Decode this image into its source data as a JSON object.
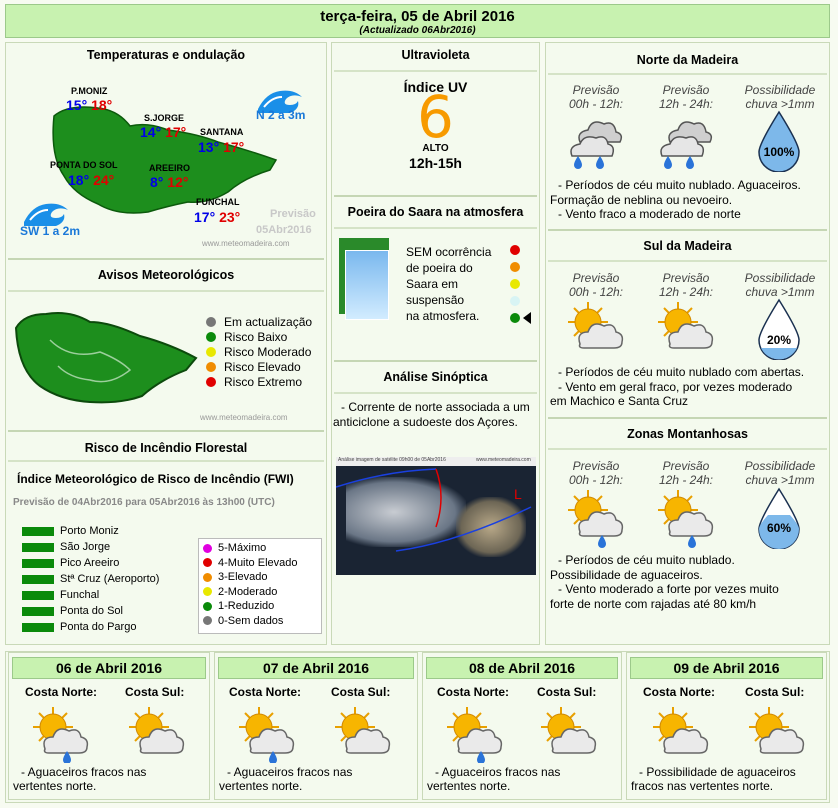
{
  "header": {
    "title": "terça-feira, 05 de Abril 2016",
    "subtitle": "(Actualizado 06Abr2016)"
  },
  "temps": {
    "title": "Temperaturas e ondulação",
    "places": [
      {
        "name": "P.MONIZ",
        "min": "15°",
        "max": "18°"
      },
      {
        "name": "S.JORGE",
        "min": "14°",
        "max": "17°"
      },
      {
        "name": "SANTANA",
        "min": "13°",
        "max": "17°"
      },
      {
        "name": "PONTA DO SOL",
        "min": "18°",
        "max": "24°"
      },
      {
        "name": "AREEIRO",
        "min": "8°",
        "max": "12°"
      },
      {
        "name": "FUNCHAL",
        "min": "17°",
        "max": "23°"
      }
    ],
    "wave_north": "N 2 a 3m",
    "wave_south": "SW 1 a 2m",
    "forecast_label": "Previsão",
    "forecast_date": "05Abr2016",
    "site": "www.meteomadeira.com"
  },
  "uv": {
    "title": "Ultravioleta",
    "label": "Índice UV",
    "value": "6",
    "level": "ALTO",
    "hours": "12h-15h"
  },
  "dust": {
    "title": "Poeira do Saara na atmosfera",
    "text": [
      "SEM ocorrência",
      "de poeira do",
      "Saara em",
      "suspensão",
      "na atmosfera."
    ],
    "dots": [
      "#e00000",
      "#f08c00",
      "#e8e800",
      "#d8f4f4",
      "#0a8a0a"
    ]
  },
  "synoptic": {
    "title": "Análise Sinóptica",
    "text": "- Corrente de norte associada a um anticiclone a sudoeste dos Açores.",
    "map_caption": "Análise imagem de satélite 09h00 de 05Abr2016",
    "map_site": "www.meteomadeira.com"
  },
  "warnings": {
    "title": "Avisos Meteorológicos",
    "items": [
      {
        "label": "Em actualização",
        "color": "#777777"
      },
      {
        "label": "Risco Baixo",
        "color": "#0a8a0a"
      },
      {
        "label": "Risco Moderado",
        "color": "#e8e800"
      },
      {
        "label": "Risco Elevado",
        "color": "#f08c00"
      },
      {
        "label": "Risco Extremo",
        "color": "#e00000"
      }
    ],
    "site": "www.meteomadeira.com"
  },
  "fire": {
    "title": "Risco de Incêndio Florestal",
    "subtitle": "Índice Meteorológico de Risco de Incêndio (FWI)",
    "period": "Previsão de 04Abr2016 para 05Abr2016 às 13h00 (UTC)",
    "places": [
      "Porto Moniz",
      "São Jorge",
      "Pico Areeiro",
      "Stª Cruz (Aeroporto)",
      "Funchal",
      "Ponta do Sol",
      "Ponta do Pargo"
    ],
    "legend": [
      {
        "label": "5-Máximo",
        "color": "#e000e0"
      },
      {
        "label": "4-Muito Elevado",
        "color": "#e00000"
      },
      {
        "label": "3-Elevado",
        "color": "#f08c00"
      },
      {
        "label": "2-Moderado",
        "color": "#e8e800"
      },
      {
        "label": "1-Reduzido",
        "color": "#0a8a0a"
      },
      {
        "label": "0-Sem dados",
        "color": "#777777"
      }
    ]
  },
  "regions": [
    {
      "title": "Norte da Madeira",
      "col1": [
        "Previsão",
        "00h - 12h:"
      ],
      "col2": [
        "Previsão",
        "12h - 24h:"
      ],
      "col3": [
        "Possibilidade",
        "chuva >1mm"
      ],
      "pct": "100%",
      "text": [
        "- Períodos de céu muito nublado. Aguaceiros.",
        "Formação de neblina ou nevoeiro.",
        "- Vento fraco a moderado de norte"
      ]
    },
    {
      "title": "Sul da Madeira",
      "col1": [
        "Previsão",
        "00h - 12h:"
      ],
      "col2": [
        "Previsão",
        "12h - 24h:"
      ],
      "col3": [
        "Possibilidade",
        "chuva >1mm"
      ],
      "pct": "20%",
      "text": [
        "- Períodos de céu muito nublado com abertas.",
        "- Vento em geral fraco, por vezes moderado",
        "em Machico e Santa Cruz"
      ]
    },
    {
      "title": "Zonas Montanhosas",
      "col1": [
        "Previsão",
        "00h - 12h:"
      ],
      "col2": [
        "Previsão",
        "12h - 24h:"
      ],
      "col3": [
        "Possibilidade",
        "chuva >1mm"
      ],
      "pct": "60%",
      "text": [
        "- Períodos de céu muito nublado.",
        "Possibilidade de aguaceiros.",
        "- Vento moderado a forte por vezes muito",
        "forte de norte com rajadas até 80 km/h"
      ]
    }
  ],
  "days": [
    {
      "date": "06 de Abril 2016",
      "north": "Costa Norte:",
      "south": "Costa Sul:",
      "text": [
        "- Aguaceiros fracos nas",
        "vertentes norte."
      ]
    },
    {
      "date": "07 de Abril 2016",
      "north": "Costa Norte:",
      "south": "Costa Sul:",
      "text": [
        "- Aguaceiros fracos nas",
        "vertentes norte."
      ]
    },
    {
      "date": "08 de Abril 2016",
      "north": "Costa Norte:",
      "south": "Costa Sul:",
      "text": [
        "- Aguaceiros fracos nas",
        "vertentes norte."
      ]
    },
    {
      "date": "09 de Abril 2016",
      "north": "Costa Norte:",
      "south": "Costa Sul:",
      "text": [
        "- Possibilidade de aguaceiros",
        "fracos nas vertentes norte."
      ]
    }
  ]
}
